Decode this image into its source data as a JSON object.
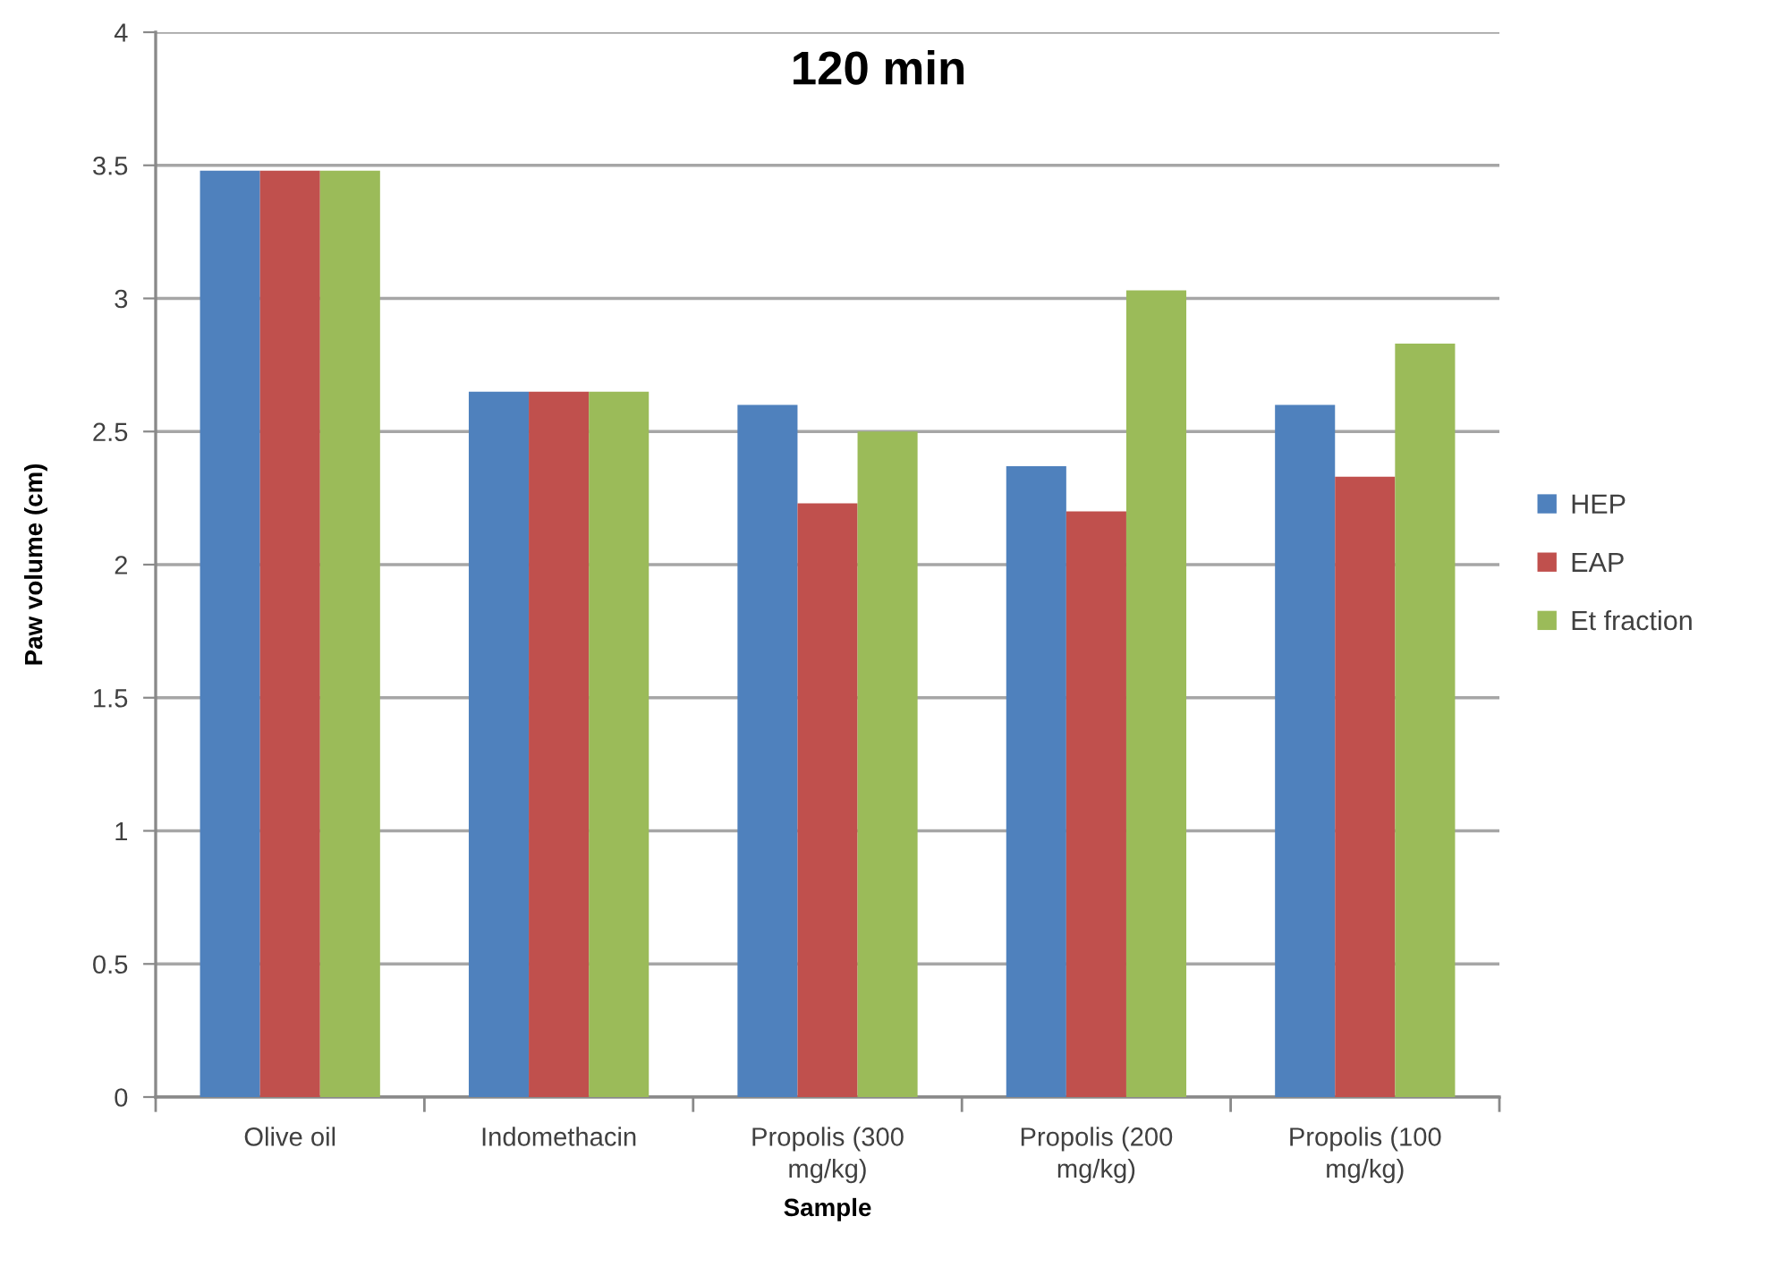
{
  "chart_data": {
    "type": "bar",
    "title": "120 min",
    "xlabel": "Sample",
    "ylabel": "Paw volume (cm)",
    "categories": [
      "Olive oil",
      "Indomethacin",
      "Propolis (300 mg/kg)",
      "Propolis (200 mg/kg)",
      "Propolis (100 mg/kg)"
    ],
    "series": [
      {
        "name": "HEP",
        "color": "#4f81bd",
        "values": [
          3.48,
          2.65,
          2.6,
          2.37,
          2.6
        ]
      },
      {
        "name": "EAP",
        "color": "#c0504d",
        "values": [
          3.48,
          2.65,
          2.23,
          2.2,
          2.33
        ]
      },
      {
        "name": "Et fraction",
        "color": "#9bbb59",
        "values": [
          3.48,
          2.65,
          2.5,
          3.03,
          2.83
        ]
      }
    ],
    "ylim": [
      0,
      4
    ],
    "yticks": [
      0,
      0.5,
      1,
      1.5,
      2,
      2.5,
      3,
      3.5,
      4
    ],
    "grid": "y",
    "legend": "right"
  }
}
